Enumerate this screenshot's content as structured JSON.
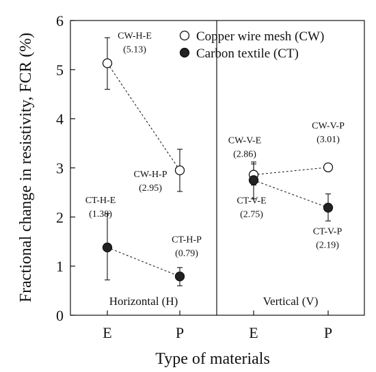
{
  "chart_data": {
    "type": "scatter",
    "xlabel": "Type of materials",
    "ylabel": "Fractional change in resistivity, FCR (%)",
    "categories": [
      "E",
      "P",
      "E",
      "P"
    ],
    "ylim": [
      0,
      6
    ],
    "yticks": [
      0,
      1,
      2,
      3,
      4,
      5,
      6
    ],
    "grid": false,
    "legend_position": "top-right",
    "regions": [
      {
        "label": "Horizontal (H)"
      },
      {
        "label": "Vertical (V)"
      }
    ],
    "series": [
      {
        "name": "Copper wire mesh (CW)",
        "marker": "open-circle",
        "points": [
          {
            "x": 0,
            "y": 5.13,
            "err_low": 4.6,
            "err_high": 5.65,
            "label": "CW-H-E",
            "value_label": "(5.13)"
          },
          {
            "x": 1,
            "y": 2.95,
            "err_low": 2.52,
            "err_high": 3.38,
            "label": "CW-H-P",
            "value_label": "(2.95)"
          },
          {
            "x": 2,
            "y": 2.86,
            "err_low": 2.65,
            "err_high": 3.08,
            "label": "CW-V-E",
            "value_label": "(2.86)"
          },
          {
            "x": 3,
            "y": 3.01,
            "err_low": 2.98,
            "err_high": 3.04,
            "label": "CW-V-P",
            "value_label": "(3.01)"
          }
        ]
      },
      {
        "name": "Carbon textile (CT)",
        "marker": "filled-circle",
        "points": [
          {
            "x": 0,
            "y": 1.38,
            "err_low": 0.72,
            "err_high": 2.07,
            "label": "CT-H-E",
            "value_label": "(1.38)"
          },
          {
            "x": 1,
            "y": 0.79,
            "err_low": 0.6,
            "err_high": 0.97,
            "label": "CT-H-P",
            "value_label": "(0.79)"
          },
          {
            "x": 2,
            "y": 2.75,
            "err_low": 2.37,
            "err_high": 3.12,
            "label": "CT-V-E",
            "value_label": "(2.75)"
          },
          {
            "x": 3,
            "y": 2.19,
            "err_low": 1.92,
            "err_high": 2.47,
            "label": "CT-V-P",
            "value_label": "(2.19)"
          }
        ]
      }
    ]
  }
}
